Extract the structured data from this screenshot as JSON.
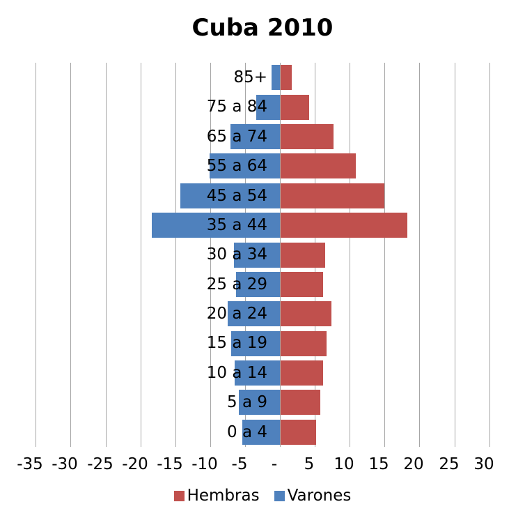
{
  "title": "Cuba 2010",
  "colors": {
    "hembras": "#C0504D",
    "varones": "#4F81BD",
    "gridline": "#A6A6A6",
    "text": "#000000",
    "background": "#FFFFFF"
  },
  "legend": {
    "items": [
      {
        "label": "Hembras",
        "series": "hembras"
      },
      {
        "label": "Varones",
        "series": "varones"
      }
    ]
  },
  "chart_data": {
    "type": "bar",
    "orientation": "horizontal",
    "title": "Cuba 2010",
    "categories": [
      "85+",
      "75 a 84",
      "65 a 74",
      "55 a 64",
      "45 a 54",
      "35 a 44",
      "30 a 34",
      "25 a 29",
      "20 a 24",
      "15 a 19",
      "10 a 14",
      "5 a 9",
      "0 a 4"
    ],
    "series": [
      {
        "name": "Hembras",
        "color": "#C0504D",
        "side": "right",
        "values": [
          1.6,
          4.1,
          7.6,
          10.8,
          14.9,
          18.2,
          6.4,
          6.1,
          7.3,
          6.6,
          6.1,
          5.7,
          5.1
        ]
      },
      {
        "name": "Varones",
        "color": "#4F81BD",
        "side": "left",
        "values": [
          -1.2,
          -3.4,
          -7.1,
          -10.1,
          -14.3,
          -18.4,
          -6.6,
          -6.3,
          -7.5,
          -7.0,
          -6.5,
          -5.9,
          -5.4
        ]
      }
    ],
    "xlim": [
      -35,
      30
    ],
    "x_tick_step": 5,
    "x_tick_labels": [
      "-35",
      "-30",
      "-25",
      "-20",
      "-15",
      "-10",
      "-5",
      "-",
      "5",
      "10",
      "15",
      "20",
      "25",
      "30"
    ],
    "grid": true,
    "legend_position": "bottom"
  }
}
